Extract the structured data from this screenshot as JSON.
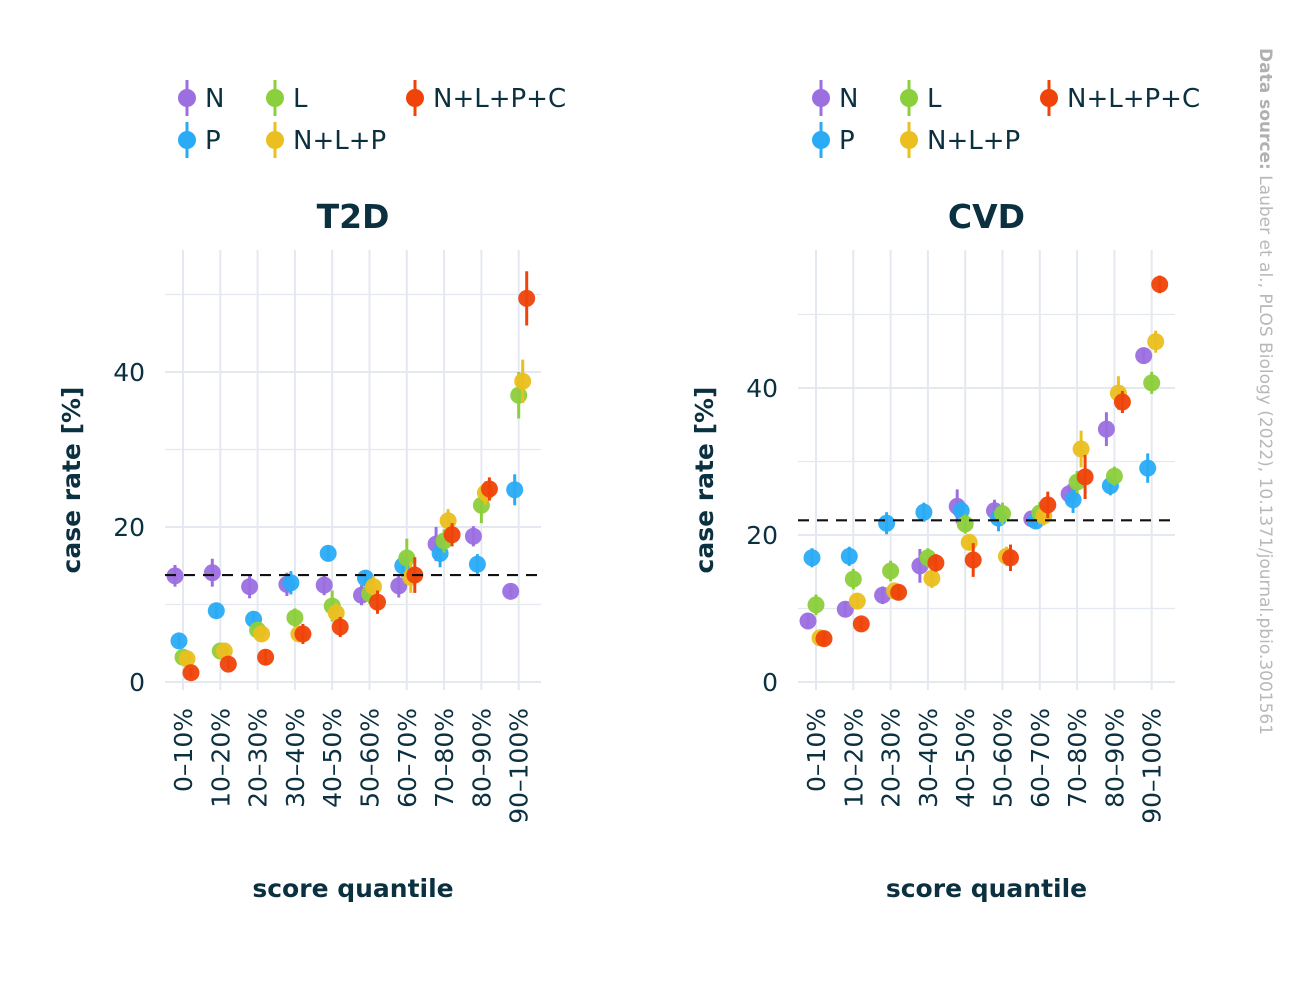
{
  "source": {
    "label": "Data source:",
    "text": " Lauber et al., PLOS Biology (2022), 10.1371/journal.pbio.3001561"
  },
  "legend": [
    {
      "name": "N",
      "color": "#9b6fe0"
    },
    {
      "name": "P",
      "color": "#2aabf5"
    },
    {
      "name": "L",
      "color": "#8ccf3c"
    },
    {
      "name": "N+L+P",
      "color": "#eabf1f"
    },
    {
      "name": "N+L+P+C",
      "color": "#ef4309"
    }
  ],
  "chart_data": [
    {
      "type": "scatter",
      "title": "T2D",
      "xlabel": "score quantile",
      "ylabel": "case rate [%]",
      "categories": [
        "0–10%",
        "10–20%",
        "20–30%",
        "30–40%",
        "40–50%",
        "50–60%",
        "60–70%",
        "70–80%",
        "80–90%",
        "90–100%"
      ],
      "yticks": [
        0,
        20,
        40
      ],
      "ylim": [
        -1.5,
        55
      ],
      "grid": true,
      "legend_position": "top",
      "reference_line": 13.8,
      "series": [
        {
          "name": "N",
          "values": [
            13.7,
            14.1,
            12.3,
            12.6,
            12.5,
            11.2,
            12.4,
            17.8,
            18.8,
            11.7
          ],
          "err": [
            1.4,
            1.8,
            1.5,
            1.5,
            1.3,
            1.3,
            1.5,
            2.2,
            1.3,
            0.8
          ]
        },
        {
          "name": "P",
          "values": [
            5.3,
            9.2,
            8.1,
            12.8,
            16.6,
            13.4,
            15.0,
            16.6,
            15.2,
            24.8
          ],
          "err": [
            0.8,
            1.0,
            1.0,
            1.5,
            1.0,
            1.0,
            1.5,
            1.8,
            1.3,
            2.0
          ]
        },
        {
          "name": "L",
          "values": [
            3.2,
            4.0,
            6.7,
            8.3,
            9.8,
            11.4,
            16.0,
            18.2,
            22.8,
            37.0
          ],
          "err": [
            0.7,
            0.8,
            1.0,
            1.2,
            2.0,
            1.3,
            2.5,
            1.5,
            2.3,
            3.0
          ]
        },
        {
          "name": "N+L+P",
          "values": [
            3.0,
            4.0,
            6.2,
            6.2,
            8.9,
            12.3,
            13.5,
            20.8,
            24.4,
            38.8
          ],
          "err": [
            0.6,
            0.8,
            1.0,
            1.0,
            1.3,
            1.3,
            2.0,
            1.5,
            1.5,
            2.8
          ]
        },
        {
          "name": "N+L+P+C",
          "values": [
            1.2,
            2.3,
            3.2,
            6.2,
            7.1,
            10.3,
            13.8,
            19.0,
            24.9,
            49.5
          ],
          "err": [
            0.6,
            0.6,
            1.0,
            1.3,
            1.3,
            1.5,
            2.3,
            1.5,
            1.5,
            3.5
          ]
        }
      ]
    },
    {
      "type": "scatter",
      "title": "CVD",
      "xlabel": "score quantile",
      "ylabel": "case rate [%]",
      "categories": [
        "0–10%",
        "10–20%",
        "20–30%",
        "30–40%",
        "40–50%",
        "50–60%",
        "60–70%",
        "70–80%",
        "80–90%",
        "90–100%"
      ],
      "yticks": [
        0,
        20,
        40
      ],
      "ylim": [
        -1.5,
        58.5
      ],
      "grid": true,
      "legend_position": "top",
      "reference_line": 22.0,
      "series": [
        {
          "name": "N",
          "values": [
            8.3,
            9.9,
            11.8,
            15.8,
            23.9,
            23.3,
            22.2,
            25.6,
            34.4,
            44.4
          ],
          "err": [
            1.0,
            1.0,
            1.2,
            2.3,
            2.3,
            1.5,
            1.0,
            1.3,
            2.3,
            1.0
          ]
        },
        {
          "name": "P",
          "values": [
            16.9,
            17.1,
            21.6,
            23.1,
            23.3,
            22.3,
            21.9,
            24.8,
            26.7,
            29.1
          ],
          "err": [
            1.3,
            1.3,
            1.5,
            1.3,
            1.3,
            1.8,
            1.0,
            1.8,
            1.3,
            2.0
          ]
        },
        {
          "name": "L",
          "values": [
            10.5,
            14.0,
            15.1,
            16.9,
            21.5,
            22.9,
            23.0,
            27.2,
            28.0,
            40.7
          ],
          "err": [
            1.4,
            1.4,
            1.4,
            1.3,
            1.3,
            1.5,
            1.5,
            1.5,
            1.3,
            1.5
          ]
        },
        {
          "name": "N+L+P",
          "values": [
            6.0,
            11.0,
            12.4,
            14.1,
            19.0,
            17.1,
            22.6,
            31.7,
            39.3,
            46.3
          ],
          "err": [
            0.8,
            1.0,
            1.0,
            1.3,
            1.0,
            1.3,
            1.3,
            2.5,
            2.3,
            1.5
          ]
        },
        {
          "name": "N+L+P+C",
          "values": [
            5.9,
            7.9,
            12.2,
            16.2,
            16.6,
            16.9,
            24.1,
            27.9,
            38.1,
            54.1
          ],
          "err": [
            0.9,
            0.8,
            1.0,
            1.2,
            2.3,
            1.8,
            1.8,
            3.0,
            1.5,
            1.2
          ]
        }
      ]
    }
  ]
}
